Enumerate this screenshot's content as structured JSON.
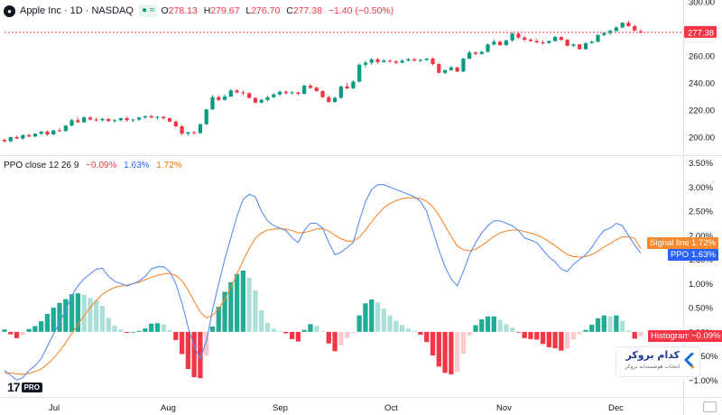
{
  "header": {
    "symbol": "Apple Inc · 1D · NASDAQ",
    "open_key": "O",
    "open": "278.13",
    "high_key": "H",
    "high": "279.67",
    "low_key": "L",
    "low": "276.70",
    "close_key": "C",
    "close": "277.38",
    "change": "−1.40 (−0.50%)",
    "last_price_label": "277.38"
  },
  "indicator": {
    "name": "PPO close 12 26 9",
    "histogram_value": "−0.09%",
    "ppo_value": "1.63%",
    "signal_value": "1.72%"
  },
  "axis_labels": {
    "signal": "Signal line",
    "signal_value": "1.72%",
    "ppo": "PPO",
    "ppo_value": "1.63%",
    "histogram": "Histogram",
    "histogram_value": "−0.09%"
  },
  "branding": {
    "tv_logo": "17",
    "tv_pro": "PRO",
    "watermark_title": "کدام بروکر",
    "watermark_sub": "انتخاب هوشمندانه بروکر"
  },
  "colors": {
    "up": "#089981",
    "down": "#f23645",
    "ppo": "#5b8def",
    "signal": "#f5892e",
    "hist_up_strong": "#22ab94",
    "hist_up_weak": "#acdfd7",
    "hist_dn_strong": "#f23645",
    "hist_dn_weak": "#fccbcd"
  },
  "chart_data": [
    {
      "type": "candlestick",
      "title": "Apple Inc · 1D · NASDAQ",
      "x_ticks": [
        "Jul",
        "Aug",
        "Sep",
        "Oct",
        "Nov",
        "Dec"
      ],
      "y_ticks": [
        "200.00",
        "220.00",
        "240.00",
        "260.00",
        "280.00",
        "300.00"
      ],
      "ylim": [
        188,
        300
      ],
      "last_price": 277.38,
      "ohlc": [
        [
          198.0,
          199.0,
          196.0,
          197.0
        ],
        [
          197.0,
          200.5,
          196.0,
          200.0
        ],
        [
          200.0,
          201.0,
          198.5,
          199.0
        ],
        [
          199.0,
          202.0,
          198.0,
          201.5
        ],
        [
          201.5,
          202.5,
          200.0,
          200.5
        ],
        [
          200.5,
          203.0,
          200.0,
          202.5
        ],
        [
          202.5,
          204.5,
          201.5,
          204.0
        ],
        [
          204.0,
          205.0,
          201.0,
          202.0
        ],
        [
          202.0,
          205.5,
          201.5,
          205.0
        ],
        [
          205.0,
          206.5,
          204.0,
          204.5
        ],
        [
          204.5,
          209.0,
          204.0,
          208.5
        ],
        [
          208.5,
          213.5,
          208.0,
          212.5
        ],
        [
          212.5,
          214.5,
          210.5,
          211.0
        ],
        [
          211.0,
          215.5,
          210.5,
          214.5
        ],
        [
          214.5,
          215.5,
          212.5,
          213.0
        ],
        [
          213.0,
          214.5,
          211.5,
          212.5
        ],
        [
          212.5,
          214.0,
          211.5,
          213.5
        ],
        [
          213.5,
          214.0,
          211.0,
          212.0
        ],
        [
          212.0,
          213.5,
          210.5,
          212.5
        ],
        [
          212.5,
          214.5,
          211.5,
          214.0
        ],
        [
          214.0,
          215.0,
          211.5,
          212.5
        ],
        [
          212.5,
          213.5,
          211.0,
          213.0
        ],
        [
          213.0,
          215.0,
          212.0,
          214.5
        ],
        [
          214.5,
          216.0,
          213.5,
          215.5
        ],
        [
          215.5,
          216.5,
          214.0,
          214.5
        ],
        [
          214.5,
          215.5,
          213.0,
          215.0
        ],
        [
          215.0,
          215.5,
          213.0,
          214.0
        ],
        [
          214.0,
          214.5,
          211.0,
          211.5
        ],
        [
          211.5,
          212.5,
          207.0,
          208.0
        ],
        [
          208.0,
          209.0,
          201.5,
          202.5
        ],
        [
          202.5,
          204.0,
          201.0,
          203.5
        ],
        [
          203.5,
          204.5,
          202.0,
          203.0
        ],
        [
          203.0,
          210.0,
          202.5,
          209.5
        ],
        [
          209.5,
          221.0,
          209.0,
          220.5
        ],
        [
          220.5,
          231.0,
          220.0,
          229.5
        ],
        [
          229.5,
          230.5,
          226.5,
          227.5
        ],
        [
          227.5,
          231.5,
          227.0,
          230.0
        ],
        [
          230.0,
          235.5,
          229.5,
          234.5
        ],
        [
          234.5,
          235.5,
          232.5,
          233.0
        ],
        [
          233.0,
          234.5,
          231.0,
          232.5
        ],
        [
          232.5,
          233.0,
          228.5,
          229.0
        ],
        [
          229.0,
          229.5,
          225.0,
          225.5
        ],
        [
          225.5,
          228.5,
          225.0,
          227.5
        ],
        [
          227.5,
          230.5,
          226.5,
          229.5
        ],
        [
          229.5,
          232.5,
          229.0,
          231.5
        ],
        [
          231.5,
          234.5,
          230.5,
          233.5
        ],
        [
          233.5,
          234.5,
          231.5,
          232.5
        ],
        [
          232.5,
          234.0,
          231.5,
          233.0
        ],
        [
          233.0,
          233.5,
          231.0,
          232.0
        ],
        [
          232.0,
          239.0,
          231.5,
          238.0
        ],
        [
          238.0,
          239.5,
          235.5,
          236.5
        ],
        [
          236.5,
          237.5,
          233.5,
          234.0
        ],
        [
          234.0,
          234.5,
          229.0,
          229.5
        ],
        [
          229.5,
          230.5,
          225.5,
          226.0
        ],
        [
          226.0,
          230.0,
          225.5,
          229.0
        ],
        [
          229.0,
          238.0,
          228.5,
          237.5
        ],
        [
          237.5,
          240.0,
          235.5,
          236.0
        ],
        [
          236.0,
          242.0,
          235.5,
          241.0
        ],
        [
          241.0,
          254.5,
          240.5,
          253.5
        ],
        [
          253.5,
          256.5,
          251.5,
          255.0
        ],
        [
          255.0,
          258.5,
          253.5,
          257.5
        ],
        [
          257.5,
          258.5,
          254.5,
          255.5
        ],
        [
          255.5,
          258.0,
          255.0,
          256.5
        ],
        [
          256.5,
          257.5,
          255.0,
          256.0
        ],
        [
          256.0,
          257.0,
          254.0,
          255.0
        ],
        [
          255.0,
          257.5,
          254.5,
          256.5
        ],
        [
          256.5,
          258.5,
          256.0,
          257.5
        ],
        [
          257.5,
          258.5,
          256.0,
          256.5
        ],
        [
          256.5,
          258.0,
          255.5,
          257.0
        ],
        [
          257.0,
          258.5,
          256.5,
          258.0
        ],
        [
          258.0,
          259.0,
          253.0,
          254.0
        ],
        [
          254.0,
          255.0,
          247.0,
          247.5
        ],
        [
          247.5,
          250.0,
          246.5,
          249.5
        ],
        [
          249.5,
          252.5,
          249.0,
          251.5
        ],
        [
          251.5,
          252.0,
          248.0,
          248.5
        ],
        [
          248.5,
          258.5,
          248.0,
          258.0
        ],
        [
          258.0,
          264.0,
          257.5,
          262.5
        ],
        [
          262.5,
          263.5,
          260.5,
          261.5
        ],
        [
          261.5,
          264.0,
          261.0,
          263.0
        ],
        [
          263.0,
          269.5,
          262.5,
          268.5
        ],
        [
          268.5,
          272.0,
          267.5,
          270.5
        ],
        [
          270.5,
          271.5,
          267.5,
          268.0
        ],
        [
          268.0,
          272.0,
          267.5,
          271.5
        ],
        [
          271.5,
          277.5,
          270.5,
          276.5
        ],
        [
          276.5,
          277.5,
          272.5,
          273.5
        ],
        [
          273.5,
          275.0,
          271.0,
          272.0
        ],
        [
          272.0,
          273.0,
          270.5,
          271.0
        ],
        [
          271.0,
          272.5,
          269.5,
          270.0
        ],
        [
          270.0,
          271.5,
          268.5,
          269.5
        ],
        [
          269.5,
          271.5,
          269.0,
          271.0
        ],
        [
          271.0,
          275.0,
          270.5,
          274.0
        ],
        [
          274.0,
          274.5,
          271.0,
          272.0
        ],
        [
          272.0,
          272.5,
          267.0,
          267.5
        ],
        [
          267.5,
          269.0,
          266.5,
          268.5
        ],
        [
          268.5,
          269.0,
          264.5,
          265.0
        ],
        [
          265.0,
          270.0,
          264.5,
          269.5
        ],
        [
          269.5,
          271.5,
          269.0,
          270.5
        ],
        [
          270.5,
          276.0,
          270.0,
          275.5
        ],
        [
          275.5,
          277.5,
          274.5,
          277.0
        ],
        [
          277.0,
          279.5,
          275.5,
          278.5
        ],
        [
          278.5,
          282.0,
          278.0,
          281.0
        ],
        [
          281.0,
          285.0,
          280.5,
          284.5
        ],
        [
          284.5,
          286.0,
          281.5,
          282.0
        ],
        [
          282.0,
          283.0,
          278.0,
          278.8
        ],
        [
          278.13,
          279.67,
          276.7,
          277.38
        ]
      ]
    },
    {
      "type": "line",
      "title": "PPO close 12 26 9",
      "y_ticks": [
        "−1.00%",
        "−0.50%",
        "0.00%",
        "0.50%",
        "1.00%",
        "1.50%",
        "2.00%",
        "2.50%",
        "3.00%",
        "3.50%"
      ],
      "ylim": [
        -1.05,
        3.55
      ],
      "series": [
        {
          "name": "PPO",
          "values": [
            -0.8,
            -0.9,
            -1.0,
            -0.95,
            -0.8,
            -0.7,
            -0.55,
            -0.3,
            -0.05,
            0.2,
            0.45,
            0.75,
            0.95,
            1.1,
            1.2,
            1.3,
            1.32,
            1.15,
            1.05,
            1.0,
            0.95,
            1.0,
            1.05,
            1.15,
            1.3,
            1.35,
            1.35,
            1.25,
            1.0,
            0.6,
            0.1,
            -0.3,
            -0.55,
            -0.2,
            0.45,
            1.0,
            1.5,
            1.95,
            2.4,
            2.75,
            2.85,
            2.8,
            2.5,
            2.3,
            2.2,
            2.15,
            2.1,
            1.95,
            1.85,
            2.1,
            2.25,
            2.25,
            2.15,
            1.85,
            1.6,
            1.65,
            1.75,
            1.85,
            2.3,
            2.7,
            2.95,
            3.05,
            3.05,
            3.0,
            2.95,
            2.9,
            2.85,
            2.8,
            2.7,
            2.5,
            2.1,
            1.7,
            1.35,
            1.1,
            0.95,
            1.25,
            1.6,
            1.85,
            2.05,
            2.2,
            2.3,
            2.3,
            2.25,
            2.2,
            2.1,
            1.95,
            1.9,
            1.85,
            1.7,
            1.55,
            1.45,
            1.3,
            1.25,
            1.4,
            1.5,
            1.6,
            1.75,
            1.95,
            2.1,
            2.15,
            2.25,
            2.2,
            2.0,
            1.8,
            1.63
          ]
        },
        {
          "name": "Signal line",
          "values": [
            -0.85,
            -0.85,
            -0.87,
            -0.88,
            -0.86,
            -0.82,
            -0.77,
            -0.67,
            -0.55,
            -0.4,
            -0.23,
            -0.03,
            0.15,
            0.33,
            0.5,
            0.65,
            0.78,
            0.86,
            0.92,
            0.95,
            0.97,
            1.0,
            1.03,
            1.08,
            1.13,
            1.17,
            1.2,
            1.21,
            1.17,
            1.06,
            0.87,
            0.64,
            0.41,
            0.29,
            0.34,
            0.48,
            0.67,
            0.92,
            1.2,
            1.48,
            1.73,
            1.94,
            2.05,
            2.11,
            2.13,
            2.14,
            2.13,
            2.1,
            2.05,
            2.06,
            2.09,
            2.13,
            2.14,
            2.09,
            2.0,
            1.93,
            1.88,
            1.88,
            1.96,
            2.11,
            2.28,
            2.44,
            2.57,
            2.66,
            2.72,
            2.76,
            2.78,
            2.78,
            2.76,
            2.71,
            2.59,
            2.42,
            2.2,
            1.98,
            1.78,
            1.7,
            1.68,
            1.71,
            1.79,
            1.88,
            1.98,
            2.05,
            2.09,
            2.11,
            2.11,
            2.08,
            2.05,
            2.01,
            1.95,
            1.87,
            1.79,
            1.69,
            1.6,
            1.56,
            1.55,
            1.56,
            1.6,
            1.67,
            1.76,
            1.83,
            1.91,
            1.97,
            1.97,
            1.94,
            1.72
          ]
        },
        {
          "name": "Histogram",
          "values": [
            0.05,
            -0.05,
            -0.13,
            -0.07,
            0.06,
            0.12,
            0.22,
            0.37,
            0.5,
            0.6,
            0.68,
            0.78,
            0.8,
            0.77,
            0.7,
            0.65,
            0.54,
            0.29,
            0.13,
            0.05,
            -0.02,
            0.0,
            0.02,
            0.07,
            0.17,
            0.18,
            0.15,
            0.04,
            -0.17,
            -0.46,
            -0.77,
            -0.94,
            -0.96,
            -0.49,
            0.11,
            0.52,
            0.83,
            1.03,
            1.2,
            1.27,
            1.12,
            0.86,
            0.45,
            0.19,
            0.07,
            0.01,
            -0.03,
            -0.15,
            -0.2,
            0.04,
            0.16,
            0.12,
            0.01,
            -0.24,
            -0.4,
            -0.28,
            -0.13,
            -0.03,
            0.34,
            0.59,
            0.67,
            0.61,
            0.48,
            0.34,
            0.23,
            0.14,
            0.07,
            0.02,
            -0.06,
            -0.21,
            -0.49,
            -0.72,
            -0.85,
            -0.88,
            -0.83,
            -0.45,
            -0.08,
            0.14,
            0.26,
            0.32,
            0.32,
            0.25,
            0.16,
            0.09,
            -0.01,
            -0.13,
            -0.15,
            -0.16,
            -0.25,
            -0.32,
            -0.34,
            -0.39,
            -0.35,
            -0.16,
            -0.05,
            0.04,
            0.15,
            0.28,
            0.34,
            0.32,
            0.34,
            0.23,
            0.03,
            -0.14,
            -0.09
          ]
        }
      ]
    }
  ]
}
